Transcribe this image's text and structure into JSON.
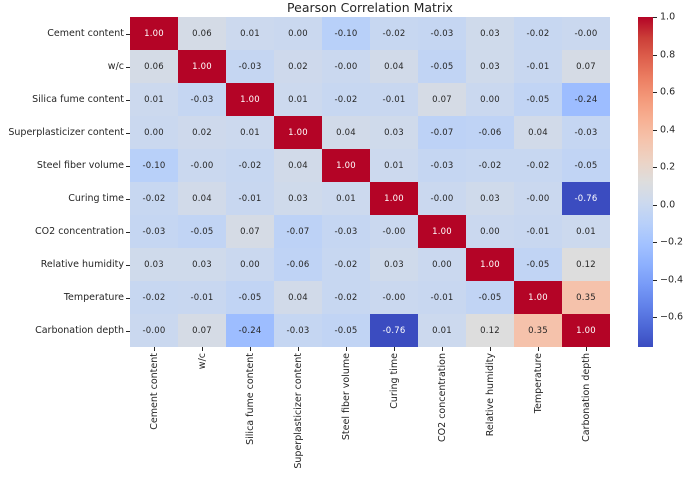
{
  "figure": {
    "background": "#ffffff",
    "text_color": "#262626"
  },
  "chart_data": {
    "type": "heatmap",
    "title": "Pearson Correlation Matrix",
    "categories": [
      "Cement content",
      "w/c",
      "Silica fume content",
      "Superplasticizer content",
      "Steel fiber volume",
      "Curing time",
      "CO2 concentration",
      "Relative humidity",
      "Temperature",
      "Carbonation depth"
    ],
    "matrix": [
      [
        "1.00",
        "0.06",
        "0.01",
        "0.00",
        "-0.10",
        "-0.02",
        "-0.03",
        "0.03",
        "-0.02",
        "-0.00"
      ],
      [
        "0.06",
        "1.00",
        "-0.03",
        "0.02",
        "-0.00",
        "0.04",
        "-0.05",
        "0.03",
        "-0.01",
        "0.07"
      ],
      [
        "0.01",
        "-0.03",
        "1.00",
        "0.01",
        "-0.02",
        "-0.01",
        "0.07",
        "0.00",
        "-0.05",
        "-0.24"
      ],
      [
        "0.00",
        "0.02",
        "0.01",
        "1.00",
        "0.04",
        "0.03",
        "-0.07",
        "-0.06",
        "0.04",
        "-0.03"
      ],
      [
        "-0.10",
        "-0.00",
        "-0.02",
        "0.04",
        "1.00",
        "0.01",
        "-0.03",
        "-0.02",
        "-0.02",
        "-0.05"
      ],
      [
        "-0.02",
        "0.04",
        "-0.01",
        "0.03",
        "0.01",
        "1.00",
        "-0.00",
        "0.03",
        "-0.00",
        "-0.76"
      ],
      [
        "-0.03",
        "-0.05",
        "0.07",
        "-0.07",
        "-0.03",
        "-0.00",
        "1.00",
        "0.00",
        "-0.01",
        "0.01"
      ],
      [
        "0.03",
        "0.03",
        "0.00",
        "-0.06",
        "-0.02",
        "0.03",
        "0.00",
        "1.00",
        "-0.05",
        "0.12"
      ],
      [
        "-0.02",
        "-0.01",
        "-0.05",
        "0.04",
        "-0.02",
        "-0.00",
        "-0.01",
        "-0.05",
        "1.00",
        "0.35"
      ],
      [
        "-0.00",
        "0.07",
        "-0.24",
        "-0.03",
        "-0.05",
        "-0.76",
        "0.01",
        "0.12",
        "0.35",
        "1.00"
      ]
    ],
    "vmin": -0.76,
    "vmax": 1.0,
    "annotated": true,
    "grid": false,
    "legend_position": "right-colorbar",
    "annotation_colors": {
      "on_dark": "#ffffff",
      "on_light": "#262626"
    },
    "colormap": {
      "name": "coolwarm",
      "anchors": [
        [
          0.0,
          59,
          76,
          192
        ],
        [
          0.0625,
          77,
          104,
          215
        ],
        [
          0.125,
          98,
          130,
          234
        ],
        [
          0.1875,
          119,
          154,
          247
        ],
        [
          0.25,
          141,
          176,
          254
        ],
        [
          0.3125,
          163,
          194,
          255
        ],
        [
          0.375,
          184,
          208,
          249
        ],
        [
          0.4375,
          204,
          217,
          238
        ],
        [
          0.5,
          221,
          221,
          221
        ],
        [
          0.5625,
          236,
          211,
          197
        ],
        [
          0.625,
          245,
          196,
          173
        ],
        [
          0.6875,
          247,
          177,
          148
        ],
        [
          0.75,
          244,
          154,
          123
        ],
        [
          0.8125,
          236,
          127,
          99
        ],
        [
          0.875,
          222,
          96,
          77
        ],
        [
          0.9375,
          203,
          62,
          56
        ],
        [
          1.0,
          180,
          4,
          38
        ]
      ]
    },
    "colorbar_ticks": [
      {
        "value": 1.0,
        "label": "1.0"
      },
      {
        "value": 0.8,
        "label": "0.8"
      },
      {
        "value": 0.6,
        "label": "0.6"
      },
      {
        "value": 0.4,
        "label": "0.4"
      },
      {
        "value": 0.2,
        "label": "0.2"
      },
      {
        "value": 0.0,
        "label": "0.0"
      },
      {
        "value": -0.2,
        "label": "−0.2"
      },
      {
        "value": -0.4,
        "label": "−0.4"
      },
      {
        "value": -0.6,
        "label": "−0.6"
      }
    ]
  }
}
